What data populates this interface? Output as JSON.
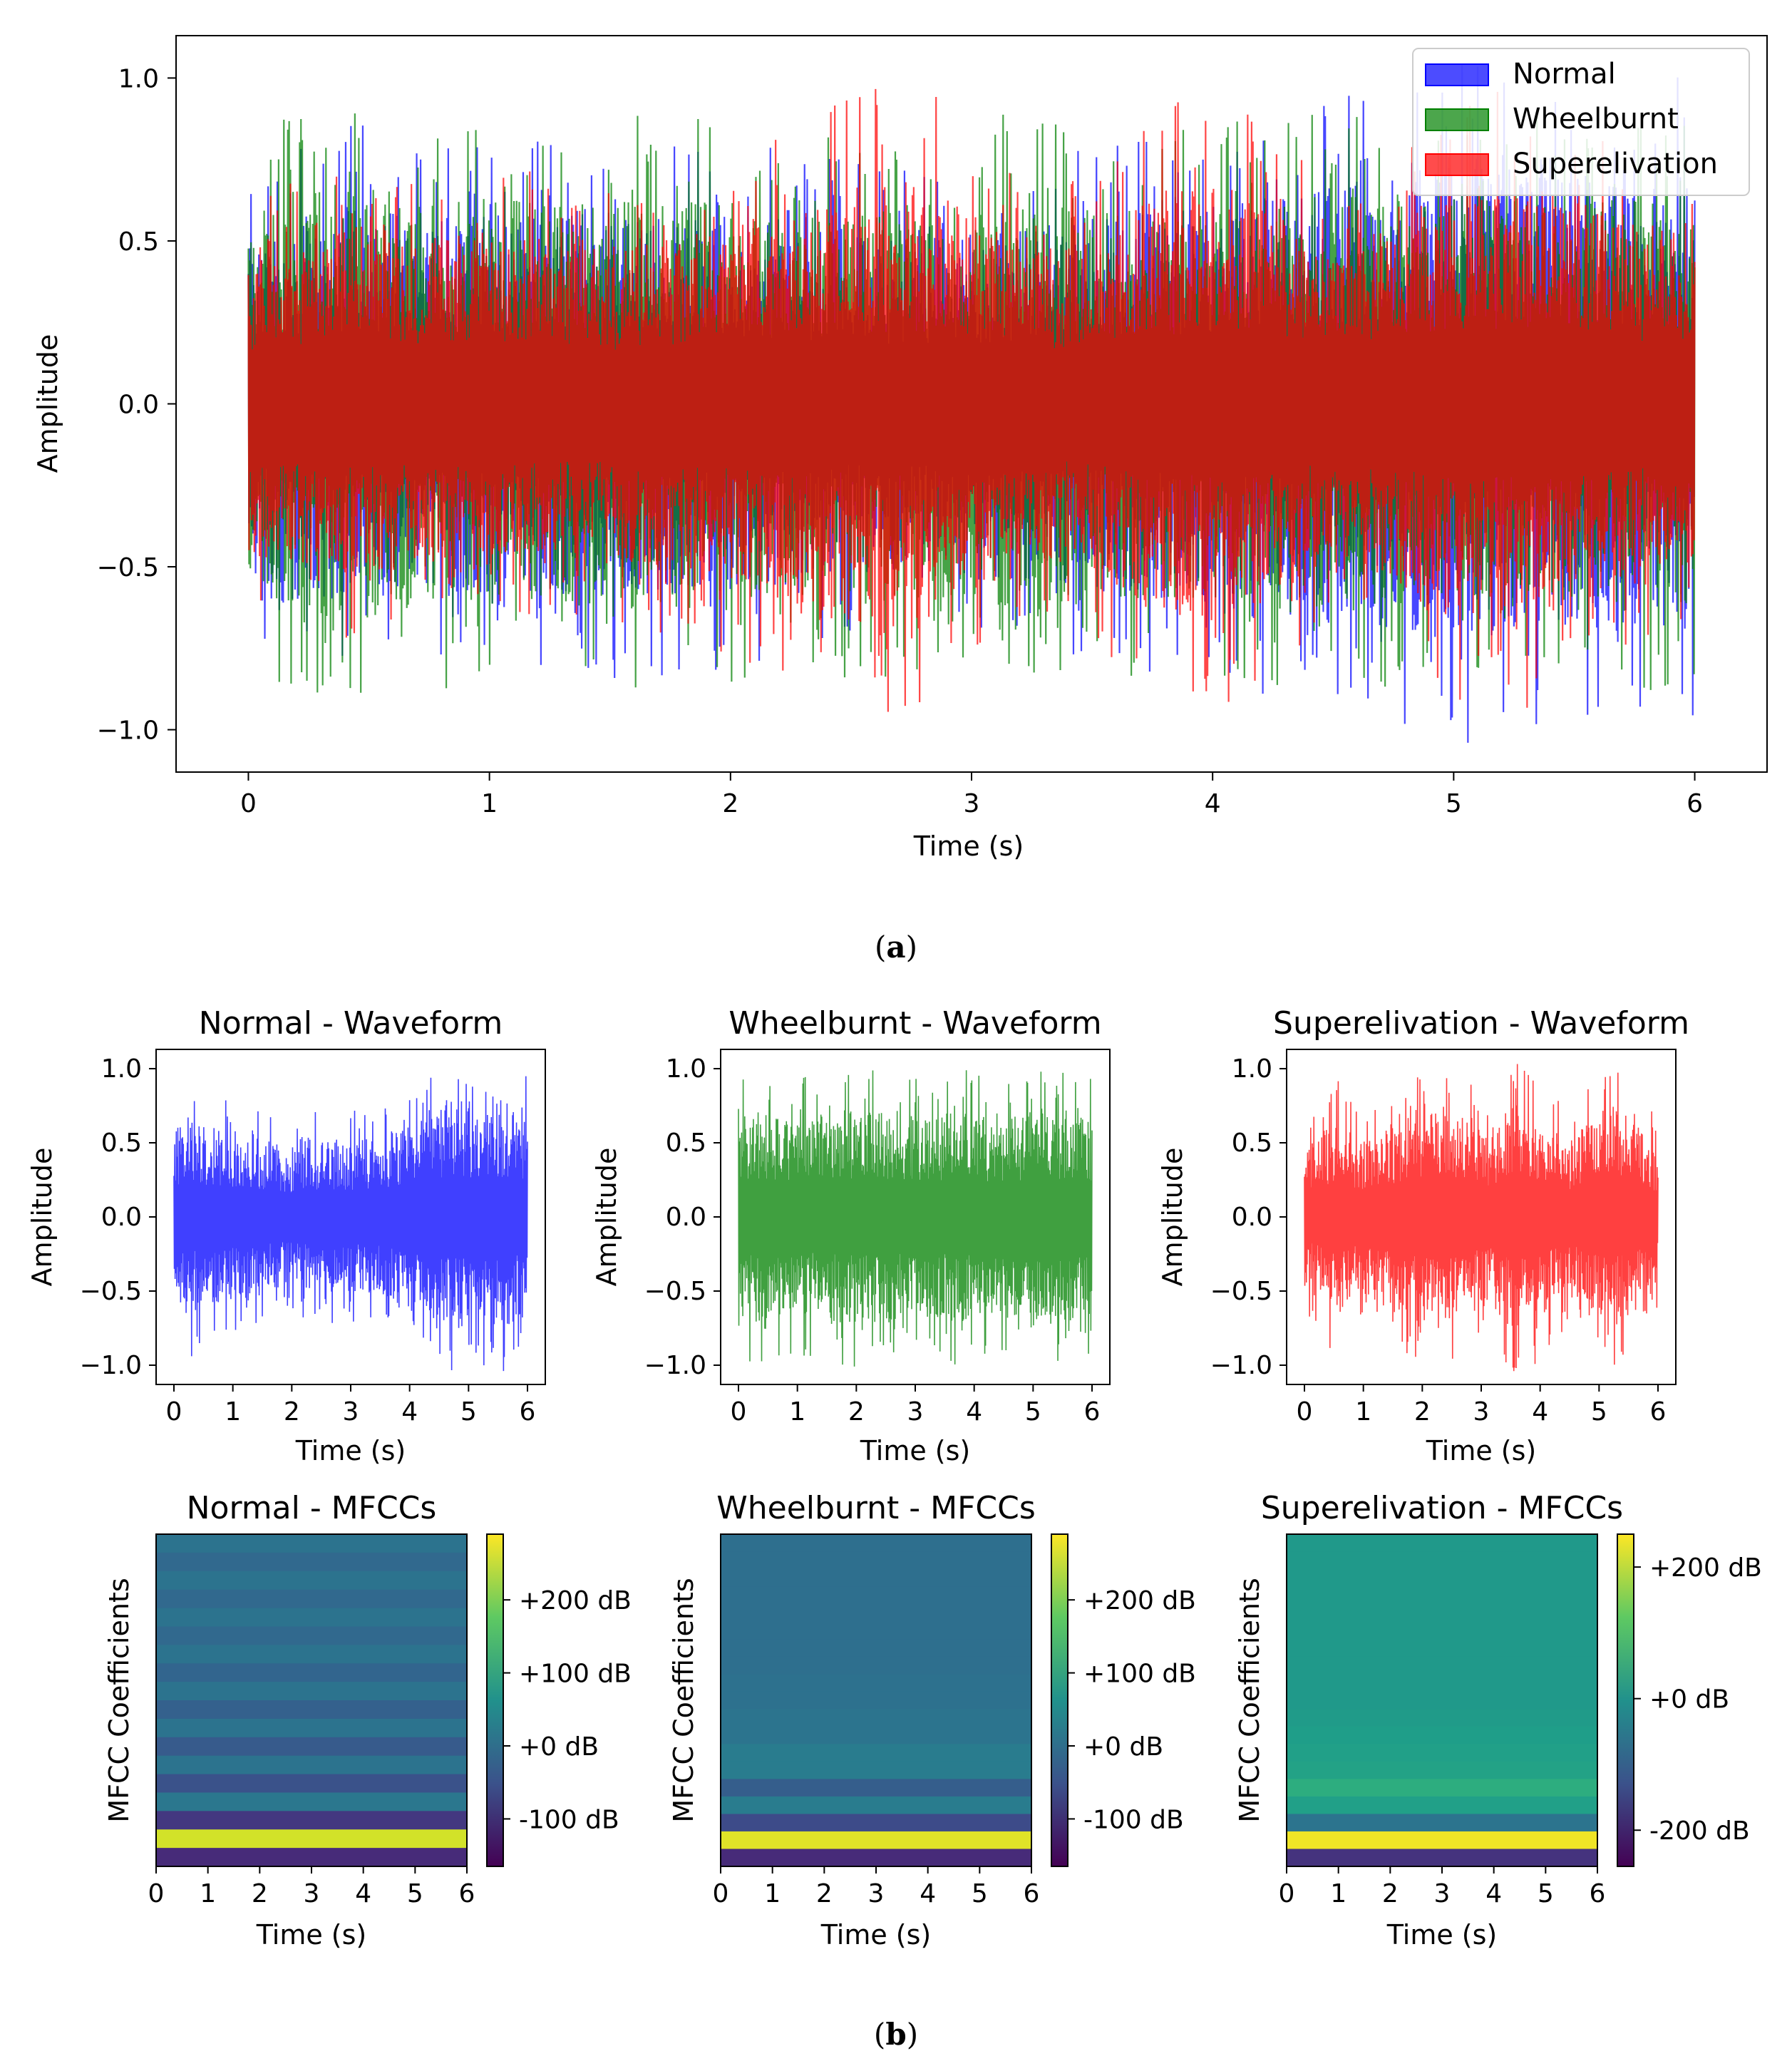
{
  "colors": {
    "normal": "#0000ff",
    "wheelburnt": "#008000",
    "superelivation": "#ff0000"
  },
  "panel_a": {
    "caption_open": "(",
    "caption_letter": "a",
    "caption_close": ")",
    "chart_data": {
      "type": "line",
      "title": "",
      "xlabel": "Time (s)",
      "ylabel": "Amplitude",
      "xlim": [
        -0.3,
        6.3
      ],
      "ylim": [
        -1.13,
        1.13
      ],
      "xticks": [
        0,
        1,
        2,
        3,
        4,
        5,
        6
      ],
      "xtick_labels": [
        "0",
        "1",
        "2",
        "3",
        "4",
        "5",
        "6"
      ],
      "yticks": [
        1.0,
        0.5,
        0.0,
        -0.5,
        -1.0
      ],
      "ytick_labels": [
        "1.0",
        "0.5",
        "0.0",
        "−0.5",
        "−1.0"
      ],
      "legend_position": "top-right",
      "series": [
        {
          "name": "Normal",
          "color_key": "normal",
          "duration_s": 6,
          "peak_amplitude": 1.0,
          "min_amplitude": -1.03,
          "envelope": [
            0.62,
            0.7,
            0.72,
            0.65,
            0.7,
            0.68,
            0.72,
            0.7,
            0.68,
            0.65,
            0.62,
            0.6,
            0.62,
            0.64,
            0.66,
            0.7,
            0.72,
            0.75,
            0.8,
            0.85,
            0.88,
            0.85,
            0.82,
            0.8,
            0.85
          ]
        },
        {
          "name": "Wheelburnt",
          "color_key": "wheelburnt",
          "duration_s": 6,
          "peak_amplitude": 0.95,
          "min_amplitude": -0.98,
          "envelope": [
            0.7,
            0.75,
            0.78,
            0.72,
            0.75,
            0.72,
            0.75,
            0.74,
            0.72,
            0.7,
            0.7,
            0.72,
            0.75,
            0.74,
            0.72,
            0.7,
            0.72,
            0.74,
            0.75,
            0.74,
            0.72,
            0.74,
            0.75,
            0.74,
            0.72
          ]
        },
        {
          "name": "Superelivation",
          "color_key": "superelivation",
          "duration_s": 6,
          "peak_amplitude": 1.0,
          "min_amplitude": -1.0,
          "envelope": [
            0.55,
            0.6,
            0.65,
            0.6,
            0.62,
            0.6,
            0.55,
            0.6,
            0.65,
            0.72,
            0.8,
            0.85,
            0.7,
            0.55,
            0.6,
            0.75,
            0.8,
            0.7,
            0.55,
            0.65,
            0.75,
            0.82,
            0.72,
            0.65,
            0.6
          ]
        }
      ]
    }
  },
  "panel_b": {
    "caption_open": "(",
    "caption_letter": "b",
    "caption_close": ")",
    "waveforms": [
      {
        "title": "Normal - Waveform",
        "color_key": "normal",
        "xlabel": "Time (s)",
        "ylabel": "Amplitude",
        "xticks": [
          "0",
          "1",
          "2",
          "3",
          "4",
          "5",
          "6"
        ],
        "ytick_labels": [
          "1.0",
          "0.5",
          "0.0",
          "−0.5",
          "−1.0"
        ],
        "ylim": [
          -1.13,
          1.13
        ],
        "envelope": [
          0.7,
          0.8,
          0.72,
          0.7,
          0.65,
          0.62,
          0.6,
          0.58,
          0.55,
          0.58,
          0.6,
          0.62,
          0.6,
          0.62,
          0.64,
          0.7,
          0.72,
          0.8,
          0.88,
          0.9,
          0.85,
          0.88,
          0.9,
          0.85,
          0.8
        ]
      },
      {
        "title": "Wheelburnt - Waveform",
        "color_key": "wheelburnt",
        "xlabel": "Time (s)",
        "ylabel": "Amplitude",
        "xticks": [
          "0",
          "1",
          "2",
          "3",
          "4",
          "5",
          "6"
        ],
        "ytick_labels": [
          "1.0",
          "0.5",
          "0.0",
          "−0.5",
          "−1.0"
        ],
        "ylim": [
          -1.13,
          1.13
        ],
        "envelope": [
          0.8,
          0.85,
          0.82,
          0.8,
          0.78,
          0.8,
          0.82,
          0.84,
          0.86,
          0.84,
          0.82,
          0.8,
          0.78,
          0.8,
          0.82,
          0.84,
          0.82,
          0.8,
          0.78,
          0.8,
          0.84,
          0.86,
          0.84,
          0.82,
          0.8
        ]
      },
      {
        "title": "Superelivation - Waveform",
        "color_key": "superelivation",
        "xlabel": "Time (s)",
        "ylabel": "Amplitude",
        "xticks": [
          "0",
          "1",
          "2",
          "3",
          "4",
          "5",
          "6"
        ],
        "ytick_labels": [
          "1.0",
          "0.5",
          "0.0",
          "−0.5",
          "−1.0"
        ],
        "ylim": [
          -1.13,
          1.13
        ],
        "envelope": [
          0.55,
          0.62,
          0.8,
          0.7,
          0.6,
          0.65,
          0.75,
          0.82,
          0.9,
          0.92,
          0.85,
          0.8,
          0.62,
          0.75,
          0.88,
          0.92,
          0.8,
          0.7,
          0.6,
          0.72,
          0.85,
          0.9,
          0.8,
          0.7,
          0.55
        ]
      }
    ],
    "mfccs": [
      {
        "title": "Normal - MFCCs",
        "xlabel": "Time (s)",
        "ylabel": "MFCC Coefficients",
        "xticks": [
          "0",
          "1",
          "2",
          "3",
          "4",
          "5",
          "6"
        ],
        "colorbar_ticks": [
          "+200 dB",
          "+100 dB",
          "+0 dB",
          "-100 dB"
        ],
        "colorbar_values": [
          200,
          100,
          0,
          -100
        ],
        "colorbar_range": [
          -165,
          290
        ],
        "coefficients_top_to_bottom": [
          8,
          -12,
          8,
          -12,
          8,
          -12,
          8,
          -18,
          8,
          -25,
          8,
          -35,
          8,
          -50,
          15,
          -90,
          260,
          -110
        ]
      },
      {
        "title": "Wheelburnt - MFCCs",
        "xlabel": "Time (s)",
        "ylabel": "MFCC Coefficients",
        "xticks": [
          "0",
          "1",
          "2",
          "3",
          "4",
          "5",
          "6"
        ],
        "colorbar_ticks": [
          "+200 dB",
          "+100 dB",
          "+0 dB",
          "-100 dB"
        ],
        "colorbar_values": [
          200,
          100,
          0,
          -100
        ],
        "colorbar_range": [
          -165,
          290
        ],
        "coefficients_top_to_bottom": [
          0,
          0,
          0,
          0,
          0,
          0,
          0,
          0,
          5,
          5,
          10,
          10,
          25,
          25,
          -30,
          25,
          -60,
          270,
          -110
        ]
      },
      {
        "title": "Superelivation - MFCCs",
        "xlabel": "Time (s)",
        "ylabel": "MFCC Coefficients",
        "xticks": [
          "0",
          "1",
          "2",
          "3",
          "4",
          "5",
          "6"
        ],
        "colorbar_ticks": [
          "+200 dB",
          "+0 dB",
          "-200 dB"
        ],
        "colorbar_values": [
          200,
          0,
          -200
        ],
        "colorbar_range": [
          -255,
          250
        ],
        "coefficients_top_to_bottom": [
          15,
          15,
          15,
          15,
          15,
          15,
          15,
          15,
          15,
          15,
          20,
          25,
          30,
          35,
          60,
          30,
          -60,
          240,
          -180
        ]
      }
    ]
  }
}
